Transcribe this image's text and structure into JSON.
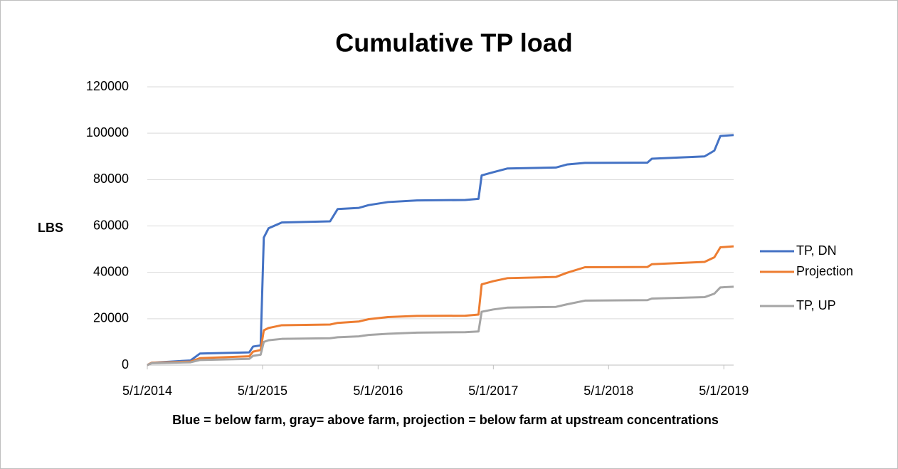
{
  "chart_data": {
    "type": "line",
    "title": "Cumulative TP load",
    "ylabel": "LBS",
    "xlabel": "Blue = below farm, gray= above farm, projection = below farm at upstream concentrations",
    "x": [
      "2014-05-01",
      "2014-05-15",
      "2014-09-15",
      "2014-10-15",
      "2015-03-20",
      "2015-04-01",
      "2015-04-25",
      "2015-05-05",
      "2015-05-20",
      "2015-07-01",
      "2015-12-01",
      "2015-12-25",
      "2016-03-01",
      "2016-04-01",
      "2016-06-01",
      "2016-09-01",
      "2017-02-01",
      "2017-03-15",
      "2017-03-25",
      "2017-05-01",
      "2017-06-15",
      "2017-11-15",
      "2017-12-20",
      "2018-02-15",
      "2018-09-01",
      "2018-09-15",
      "2019-03-01",
      "2019-04-01",
      "2019-04-20",
      "2019-06-01"
    ],
    "series": [
      {
        "name": "TP, DN",
        "color": "#4472c4",
        "values": [
          0,
          1000,
          2000,
          5000,
          5500,
          8000,
          8500,
          55000,
          59000,
          61500,
          62000,
          67300,
          67800,
          69000,
          70300,
          71000,
          71200,
          71700,
          81800,
          83200,
          84800,
          85200,
          86500,
          87200,
          87300,
          89000,
          90000,
          92500,
          98800,
          99200
        ]
      },
      {
        "name": "Projection",
        "color": "#ed7d31",
        "values": [
          0,
          1000,
          1500,
          3000,
          3800,
          5800,
          6500,
          15000,
          16000,
          17200,
          17500,
          18200,
          18800,
          19800,
          20700,
          21200,
          21300,
          21800,
          34800,
          36200,
          37500,
          38000,
          39800,
          42200,
          42300,
          43500,
          44500,
          46500,
          50800,
          51200
        ]
      },
      {
        "name": "TP, UP",
        "color": "#a5a5a5",
        "values": [
          0,
          800,
          1200,
          2200,
          2700,
          4000,
          4500,
          10000,
          10700,
          11300,
          11600,
          12000,
          12400,
          13000,
          13500,
          14000,
          14200,
          14500,
          23000,
          24000,
          24800,
          25100,
          26200,
          27800,
          28000,
          28700,
          29300,
          30800,
          33500,
          33800
        ]
      }
    ],
    "xlim": [
      "2014-05-01",
      "2019-06-01"
    ],
    "xticks": [
      {
        "value": "2014-05-01",
        "label": "5/1/2014"
      },
      {
        "value": "2015-05-01",
        "label": "5/1/2015"
      },
      {
        "value": "2016-05-01",
        "label": "5/1/2016"
      },
      {
        "value": "2017-05-01",
        "label": "5/1/2017"
      },
      {
        "value": "2018-05-01",
        "label": "5/1/2018"
      },
      {
        "value": "2019-05-01",
        "label": "5/1/2019"
      }
    ],
    "ylim": [
      0,
      120000
    ],
    "yticks": [
      0,
      20000,
      40000,
      60000,
      80000,
      100000,
      120000
    ],
    "grid": true,
    "legend": "right"
  }
}
